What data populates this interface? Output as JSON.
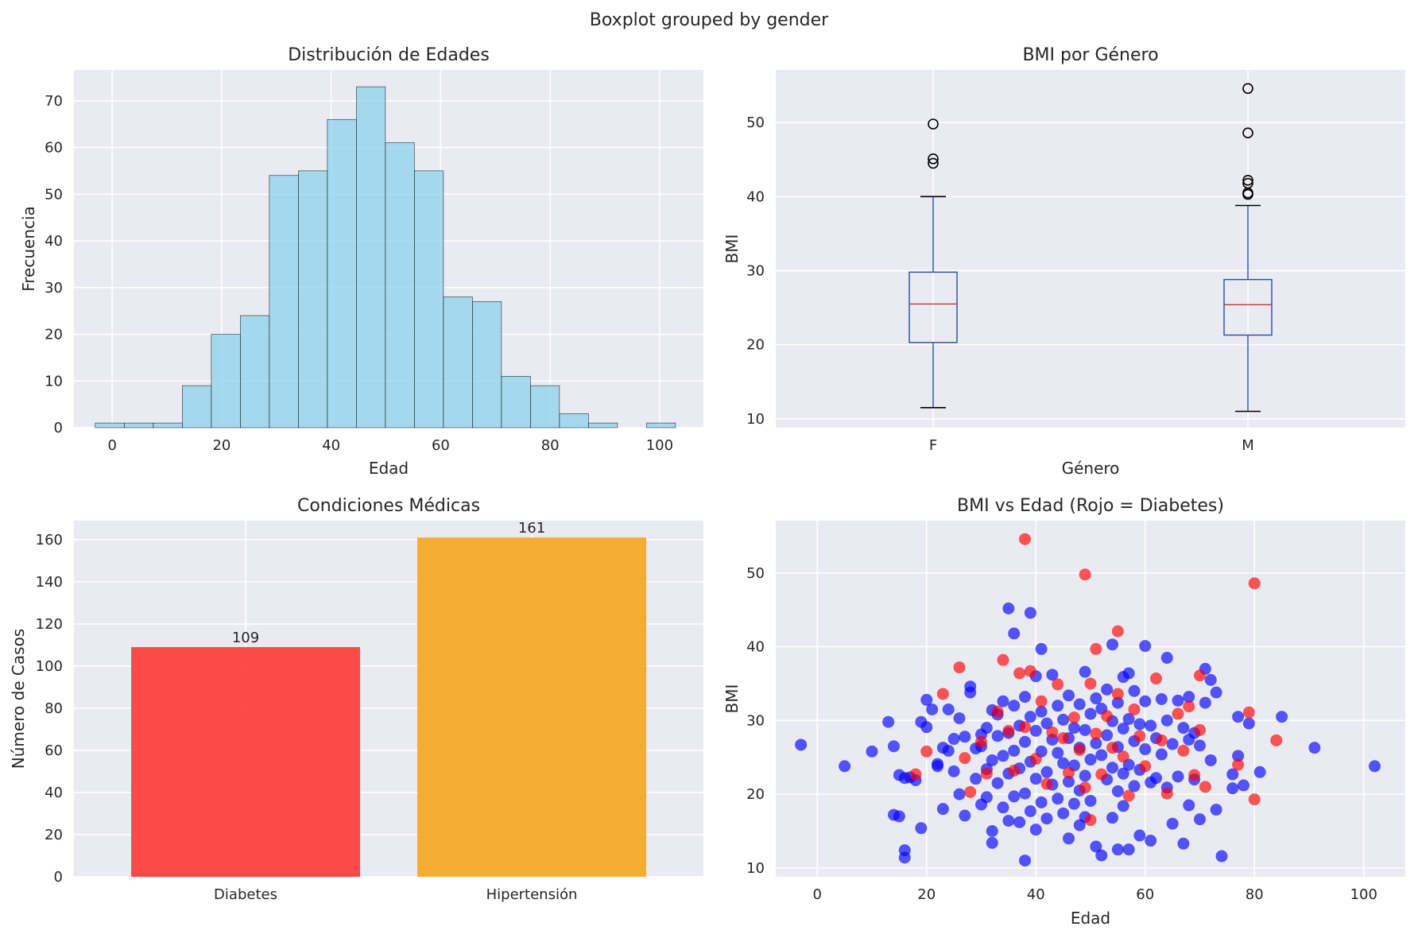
{
  "figure": {
    "suptitle": "Boxplot grouped by gender"
  },
  "chart_data": [
    {
      "type": "bar",
      "subtype": "histogram",
      "title": "Distribución de Edades",
      "xlabel": "Edad",
      "ylabel": "Frecuencia",
      "bin_edges": [
        -3.1,
        2.2,
        7.5,
        12.8,
        18.1,
        23.4,
        28.7,
        34.0,
        39.3,
        44.6,
        49.9,
        55.2,
        60.5,
        65.8,
        71.1,
        76.4,
        81.7,
        87.0,
        92.3,
        97.6,
        102.9
      ],
      "counts": [
        1,
        1,
        1,
        9,
        20,
        24,
        54,
        55,
        66,
        73,
        61,
        55,
        28,
        27,
        11,
        9,
        3,
        1,
        0,
        1
      ],
      "xlim": [
        -7,
        108
      ],
      "ylim": [
        0,
        76.6
      ],
      "xticks": [
        0,
        20,
        40,
        60,
        80,
        100
      ],
      "yticks": [
        0,
        10,
        20,
        30,
        40,
        50,
        60,
        70
      ],
      "color": "#87ceeb",
      "edgecolor": "#000000",
      "grid": true
    },
    {
      "type": "box",
      "title": "BMI por Género",
      "xlabel": "Género",
      "ylabel": "BMI",
      "categories": [
        "F",
        "M"
      ],
      "boxes": [
        {
          "name": "F",
          "whislo": 11.5,
          "q1": 20.3,
          "med": 25.5,
          "q3": 29.8,
          "whishi": 40.0,
          "fliers": [
            49.8,
            45.1,
            44.5
          ]
        },
        {
          "name": "M",
          "whislo": 11.0,
          "q1": 21.3,
          "med": 25.4,
          "q3": 28.8,
          "whishi": 38.8,
          "fliers": [
            54.6,
            48.6,
            42.2,
            41.8,
            40.5,
            40.3
          ]
        }
      ],
      "ylim": [
        8.8,
        57.1
      ],
      "yticks": [
        10,
        20,
        30,
        40,
        50
      ],
      "box_color": "#1f4fa8",
      "median_color": "#c0392b",
      "grid": true
    },
    {
      "type": "bar",
      "title": "Condiciones Médicas",
      "ylabel": "Número de Casos",
      "categories": [
        "Diabetes",
        "Hipertensión"
      ],
      "values": [
        109,
        161
      ],
      "colors": [
        "#ff3b3b",
        "#f5a623"
      ],
      "data_labels": [
        "109",
        "161"
      ],
      "ylim": [
        0,
        169
      ],
      "yticks": [
        0,
        20,
        40,
        60,
        80,
        100,
        120,
        140,
        160
      ],
      "grid": true
    },
    {
      "type": "scatter",
      "title": "BMI vs Edad (Rojo = Diabetes)",
      "xlabel": "Edad",
      "ylabel": "BMI",
      "xlim": [
        -7.6,
        107.6
      ],
      "ylim": [
        8.8,
        57.1
      ],
      "xticks": [
        0,
        20,
        40,
        60,
        80,
        100
      ],
      "yticks": [
        10,
        20,
        30,
        40,
        50
      ],
      "series": [
        {
          "color": "#0000ff",
          "points": [
            [
              -3,
              26.7
            ],
            [
              5,
              23.8
            ],
            [
              10,
              25.8
            ],
            [
              13,
              29.8
            ],
            [
              14,
              26.5
            ],
            [
              14,
              17.2
            ],
            [
              15,
              22.6
            ],
            [
              15,
              17.0
            ],
            [
              16,
              22.2
            ],
            [
              16,
              12.4
            ],
            [
              16,
              11.4
            ],
            [
              17,
              22.3
            ],
            [
              18,
              21.9
            ],
            [
              19,
              29.8
            ],
            [
              19,
              15.4
            ],
            [
              20,
              32.8
            ],
            [
              20,
              29.1
            ],
            [
              21,
              31.5
            ],
            [
              22,
              23.8
            ],
            [
              22,
              24.1
            ],
            [
              23,
              26.3
            ],
            [
              23,
              18.0
            ],
            [
              24,
              31.5
            ],
            [
              24,
              25.9
            ],
            [
              25,
              27.5
            ],
            [
              25,
              23.1
            ],
            [
              26,
              30.3
            ],
            [
              26,
              20.0
            ],
            [
              27,
              27.8
            ],
            [
              27,
              17.1
            ],
            [
              28,
              34.6
            ],
            [
              28,
              33.8
            ],
            [
              29,
              26.2
            ],
            [
              29,
              22.1
            ],
            [
              30,
              28.1
            ],
            [
              30,
              26.5
            ],
            [
              30,
              18.6
            ],
            [
              31,
              29.0
            ],
            [
              31,
              23.4
            ],
            [
              31,
              19.6
            ],
            [
              32,
              31.4
            ],
            [
              32,
              24.6
            ],
            [
              32,
              15.0
            ],
            [
              32,
              13.4
            ],
            [
              33,
              30.8
            ],
            [
              33,
              27.9
            ],
            [
              33,
              21.5
            ],
            [
              34,
              32.6
            ],
            [
              34,
              25.2
            ],
            [
              34,
              18.2
            ],
            [
              35,
              45.2
            ],
            [
              35,
              28.3
            ],
            [
              35,
              22.8
            ],
            [
              35,
              16.4
            ],
            [
              36,
              41.8
            ],
            [
              36,
              32.0
            ],
            [
              36,
              25.9
            ],
            [
              36,
              19.7
            ],
            [
              37,
              29.3
            ],
            [
              37,
              23.5
            ],
            [
              37,
              16.2
            ],
            [
              38,
              33.2
            ],
            [
              38,
              27.1
            ],
            [
              38,
              20.1
            ],
            [
              38,
              11.0
            ],
            [
              39,
              44.6
            ],
            [
              39,
              30.5
            ],
            [
              39,
              24.4
            ],
            [
              39,
              17.7
            ],
            [
              40,
              36.0
            ],
            [
              40,
              28.6
            ],
            [
              40,
              22.1
            ],
            [
              40,
              15.2
            ],
            [
              41,
              39.7
            ],
            [
              41,
              31.2
            ],
            [
              41,
              25.8
            ],
            [
              41,
              18.9
            ],
            [
              42,
              29.6
            ],
            [
              42,
              23.0
            ],
            [
              42,
              16.7
            ],
            [
              43,
              36.2
            ],
            [
              43,
              27.4
            ],
            [
              43,
              21.3
            ],
            [
              44,
              32.0
            ],
            [
              44,
              25.6
            ],
            [
              44,
              19.4
            ],
            [
              45,
              30.1
            ],
            [
              45,
              24.2
            ],
            [
              45,
              17.4
            ],
            [
              46,
              33.4
            ],
            [
              46,
              27.6
            ],
            [
              46,
              21.7
            ],
            [
              46,
              14.0
            ],
            [
              47,
              29.0
            ],
            [
              47,
              23.9
            ],
            [
              47,
              18.7
            ],
            [
              48,
              32.2
            ],
            [
              48,
              26.3
            ],
            [
              48,
              20.5
            ],
            [
              48,
              15.8
            ],
            [
              49,
              36.6
            ],
            [
              49,
              28.7
            ],
            [
              49,
              22.5
            ],
            [
              49,
              16.9
            ],
            [
              50,
              30.9
            ],
            [
              50,
              24.7
            ],
            [
              50,
              19.1
            ],
            [
              51,
              33.0
            ],
            [
              51,
              26.9
            ],
            [
              51,
              12.9
            ],
            [
              52,
              31.6
            ],
            [
              52,
              25.3
            ],
            [
              52,
              11.7
            ],
            [
              53,
              34.2
            ],
            [
              53,
              28.0
            ],
            [
              53,
              22.0
            ],
            [
              54,
              40.3
            ],
            [
              54,
              29.9
            ],
            [
              54,
              23.6
            ],
            [
              54,
              16.8
            ],
            [
              55,
              32.4
            ],
            [
              55,
              26.4
            ],
            [
              55,
              20.4
            ],
            [
              55,
              12.5
            ],
            [
              56,
              35.9
            ],
            [
              56,
              28.9
            ],
            [
              56,
              22.8
            ],
            [
              56,
              18.4
            ],
            [
              57,
              36.4
            ],
            [
              57,
              30.2
            ],
            [
              57,
              24.0
            ],
            [
              57,
              12.5
            ],
            [
              58,
              34.0
            ],
            [
              58,
              27.2
            ],
            [
              58,
              21.1
            ],
            [
              59,
              29.5
            ],
            [
              59,
              23.3
            ],
            [
              59,
              14.4
            ],
            [
              60,
              40.1
            ],
            [
              60,
              32.6
            ],
            [
              60,
              26.1
            ],
            [
              61,
              29.3
            ],
            [
              61,
              21.6
            ],
            [
              61,
              13.7
            ],
            [
              62,
              27.6
            ],
            [
              62,
              22.2
            ],
            [
              63,
              32.9
            ],
            [
              63,
              25.4
            ],
            [
              64,
              38.5
            ],
            [
              64,
              30.0
            ],
            [
              64,
              20.9
            ],
            [
              65,
              26.8
            ],
            [
              65,
              16.0
            ],
            [
              66,
              32.7
            ],
            [
              66,
              22.4
            ],
            [
              67,
              29.0
            ],
            [
              67,
              13.3
            ],
            [
              68,
              33.2
            ],
            [
              68,
              27.4
            ],
            [
              68,
              18.5
            ],
            [
              69,
              28.3
            ],
            [
              69,
              22.0
            ],
            [
              70,
              26.6
            ],
            [
              70,
              16.6
            ],
            [
              71,
              37.0
            ],
            [
              71,
              32.4
            ],
            [
              72,
              35.5
            ],
            [
              72,
              24.6
            ],
            [
              73,
              33.8
            ],
            [
              73,
              17.9
            ],
            [
              74,
              11.6
            ],
            [
              76,
              20.8
            ],
            [
              76,
              22.7
            ],
            [
              77,
              25.2
            ],
            [
              77,
              30.5
            ],
            [
              78,
              21.2
            ],
            [
              79,
              29.6
            ],
            [
              81,
              23.0
            ],
            [
              85,
              30.5
            ],
            [
              91,
              26.3
            ],
            [
              102,
              23.8
            ]
          ]
        },
        {
          "color": "#ff0000",
          "points": [
            [
              18,
              22.7
            ],
            [
              20,
              25.8
            ],
            [
              23,
              33.6
            ],
            [
              26,
              37.2
            ],
            [
              27,
              24.9
            ],
            [
              28,
              20.3
            ],
            [
              30,
              27.1
            ],
            [
              31,
              22.8
            ],
            [
              33,
              31.2
            ],
            [
              34,
              38.2
            ],
            [
              35,
              28.6
            ],
            [
              36,
              23.2
            ],
            [
              37,
              36.4
            ],
            [
              38,
              54.6
            ],
            [
              38,
              29.1
            ],
            [
              39,
              36.7
            ],
            [
              40,
              24.8
            ],
            [
              41,
              32.6
            ],
            [
              42,
              21.4
            ],
            [
              43,
              28.4
            ],
            [
              44,
              34.9
            ],
            [
              45,
              27.6
            ],
            [
              46,
              22.9
            ],
            [
              47,
              30.4
            ],
            [
              48,
              26.0
            ],
            [
              49,
              49.8
            ],
            [
              49,
              20.9
            ],
            [
              50,
              35.0
            ],
            [
              50,
              16.5
            ],
            [
              51,
              39.7
            ],
            [
              51,
              28.2
            ],
            [
              52,
              22.7
            ],
            [
              53,
              30.6
            ],
            [
              54,
              26.3
            ],
            [
              55,
              42.1
            ],
            [
              55,
              33.6
            ],
            [
              56,
              25.1
            ],
            [
              57,
              19.8
            ],
            [
              58,
              31.5
            ],
            [
              59,
              27.9
            ],
            [
              60,
              23.8
            ],
            [
              62,
              35.7
            ],
            [
              63,
              27.3
            ],
            [
              64,
              20.1
            ],
            [
              66,
              30.9
            ],
            [
              67,
              25.9
            ],
            [
              68,
              31.9
            ],
            [
              69,
              22.6
            ],
            [
              70,
              36.1
            ],
            [
              70,
              28.7
            ],
            [
              71,
              21.0
            ],
            [
              77,
              24.0
            ],
            [
              79,
              31.1
            ],
            [
              80,
              19.3
            ],
            [
              80,
              48.6
            ],
            [
              84,
              27.3
            ]
          ]
        }
      ],
      "grid": true
    }
  ]
}
